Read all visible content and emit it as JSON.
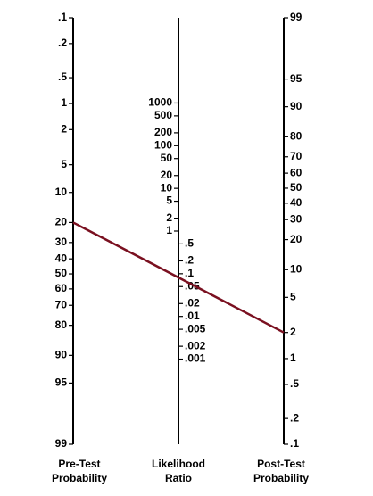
{
  "axes": {
    "pretest": {
      "label_line1": "Pre-Test",
      "label_line2": "Probability",
      "ticks": [
        {
          "label": ".1",
          "value": 0.1
        },
        {
          "label": ".2",
          "value": 0.2
        },
        {
          "label": ".5",
          "value": 0.5
        },
        {
          "label": "1",
          "value": 1
        },
        {
          "label": "2",
          "value": 2
        },
        {
          "label": "5",
          "value": 5
        },
        {
          "label": "10",
          "value": 10
        },
        {
          "label": "20",
          "value": 20
        },
        {
          "label": "30",
          "value": 30
        },
        {
          "label": "40",
          "value": 40
        },
        {
          "label": "50",
          "value": 50
        },
        {
          "label": "60",
          "value": 60
        },
        {
          "label": "70",
          "value": 70
        },
        {
          "label": "80",
          "value": 80
        },
        {
          "label": "90",
          "value": 90
        },
        {
          "label": "95",
          "value": 95
        },
        {
          "label": "99",
          "value": 99
        }
      ]
    },
    "likelihood": {
      "label_line1": "Likelihood",
      "label_line2": "Ratio",
      "ticks": [
        {
          "label": "1000",
          "value": 1000
        },
        {
          "label": "500",
          "value": 500
        },
        {
          "label": "200",
          "value": 200
        },
        {
          "label": "100",
          "value": 100
        },
        {
          "label": "50",
          "value": 50
        },
        {
          "label": "20",
          "value": 20
        },
        {
          "label": "10",
          "value": 10
        },
        {
          "label": "5",
          "value": 5
        },
        {
          "label": "2",
          "value": 2
        },
        {
          "label": "1",
          "value": 1
        },
        {
          "label": ".5",
          "value": 0.5
        },
        {
          "label": ".2",
          "value": 0.2
        },
        {
          "label": ".1",
          "value": 0.1
        },
        {
          "label": ".05",
          "value": 0.05
        },
        {
          "label": ".02",
          "value": 0.02
        },
        {
          "label": ".01",
          "value": 0.01
        },
        {
          "label": ".005",
          "value": 0.005
        },
        {
          "label": ".002",
          "value": 0.002
        },
        {
          "label": ".001",
          "value": 0.001
        }
      ]
    },
    "posttest": {
      "label_line1": "Post-Test",
      "label_line2": "Probability",
      "ticks": [
        {
          "label": "99",
          "value": 99
        },
        {
          "label": "95",
          "value": 95
        },
        {
          "label": "90",
          "value": 90
        },
        {
          "label": "80",
          "value": 80
        },
        {
          "label": "70",
          "value": 70
        },
        {
          "label": "60",
          "value": 60
        },
        {
          "label": "50",
          "value": 50
        },
        {
          "label": "40",
          "value": 40
        },
        {
          "label": "30",
          "value": 30
        },
        {
          "label": "20",
          "value": 20
        },
        {
          "label": "10",
          "value": 10
        },
        {
          "label": "5",
          "value": 5
        },
        {
          "label": "2",
          "value": 2
        },
        {
          "label": "1",
          "value": 1
        },
        {
          "label": ".5",
          "value": 0.5
        },
        {
          "label": ".2",
          "value": 0.2
        },
        {
          "label": ".1",
          "value": 0.1
        }
      ]
    }
  },
  "result_line": {
    "pretest_probability": 20,
    "posttest_probability": 2,
    "color": "#7a1020"
  }
}
